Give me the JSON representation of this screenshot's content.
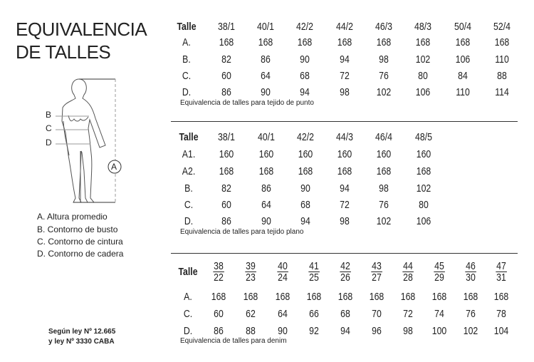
{
  "title": {
    "line1": "EQUIVALENCIA",
    "line2": "DE TALLES"
  },
  "figure": {
    "labels": {
      "b": "B",
      "c": "C",
      "d": "D",
      "a": "A"
    }
  },
  "legend": [
    "A. Altura promedio",
    "B. Contorno de busto",
    "C. Contorno de cintura",
    "D. Contorno de cadera"
  ],
  "law": {
    "line1": "Según ley Nº 12.665",
    "line2": "y ley Nº 3330 CABA"
  },
  "tables": [
    {
      "header_label": "Talle",
      "sizes": [
        "38/1",
        "40/1",
        "42/2",
        "44/2",
        "46/3",
        "48/3",
        "50/4",
        "52/4"
      ],
      "rows": [
        {
          "label": "A.",
          "values": [
            "168",
            "168",
            "168",
            "168",
            "168",
            "168",
            "168",
            "168"
          ]
        },
        {
          "label": "B.",
          "values": [
            "82",
            "86",
            "90",
            "94",
            "98",
            "102",
            "106",
            "110"
          ]
        },
        {
          "label": "C.",
          "values": [
            "60",
            "64",
            "68",
            "72",
            "76",
            "80",
            "84",
            "88"
          ]
        },
        {
          "label": "D.",
          "values": [
            "86",
            "90",
            "94",
            "98",
            "102",
            "106",
            "110",
            "114"
          ]
        }
      ],
      "caption": "Equivalencia de talles para tejido de punto"
    },
    {
      "header_label": "Talle",
      "sizes": [
        "38/1",
        "40/1",
        "42/2",
        "44/3",
        "46/4",
        "48/5"
      ],
      "rows": [
        {
          "label": "A1.",
          "values": [
            "160",
            "160",
            "160",
            "160",
            "160",
            "160"
          ]
        },
        {
          "label": "A2.",
          "values": [
            "168",
            "168",
            "168",
            "168",
            "168",
            "168"
          ]
        },
        {
          "label": "B.",
          "values": [
            "82",
            "86",
            "90",
            "94",
            "98",
            "102"
          ]
        },
        {
          "label": "C.",
          "values": [
            "60",
            "64",
            "68",
            "72",
            "76",
            "80"
          ]
        },
        {
          "label": "D.",
          "values": [
            "86",
            "90",
            "94",
            "98",
            "102",
            "106"
          ]
        }
      ],
      "caption": "Equivalencia de talles para tejido plano"
    },
    {
      "header_label": "Talle",
      "sizes": [
        [
          "38",
          "22"
        ],
        [
          "39",
          "23"
        ],
        [
          "40",
          "24"
        ],
        [
          "41",
          "25"
        ],
        [
          "42",
          "26"
        ],
        [
          "43",
          "27"
        ],
        [
          "44",
          "28"
        ],
        [
          "45",
          "29"
        ],
        [
          "46",
          "30"
        ],
        [
          "47",
          "31"
        ]
      ],
      "rows": [
        {
          "label": "A.",
          "values": [
            "168",
            "168",
            "168",
            "168",
            "168",
            "168",
            "168",
            "168",
            "168",
            "168"
          ]
        },
        {
          "label": "C.",
          "values": [
            "60",
            "62",
            "64",
            "66",
            "68",
            "70",
            "72",
            "74",
            "76",
            "78"
          ]
        },
        {
          "label": "D.",
          "values": [
            "86",
            "88",
            "90",
            "92",
            "94",
            "96",
            "98",
            "100",
            "102",
            "104"
          ]
        }
      ],
      "caption": "Equivalencia de talles para denim"
    }
  ]
}
